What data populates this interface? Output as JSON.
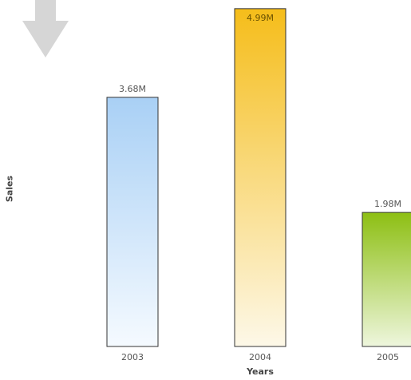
{
  "chart_data": {
    "type": "bar",
    "title": "",
    "xlabel": "Years",
    "ylabel": "Sales",
    "categories": [
      "2003",
      "2004",
      "2005"
    ],
    "values": [
      3.68,
      4.99,
      1.98
    ],
    "value_labels": [
      "3.68M",
      "4.99M",
      "1.98M"
    ],
    "unit": "M",
    "ylim": [
      0,
      5
    ],
    "grid": false,
    "legend": "none",
    "colors": [
      {
        "top": "#a9d0f5",
        "bottom": "#f5faff"
      },
      {
        "top": "#f5bd1a",
        "bottom": "#fdf8e8"
      },
      {
        "top": "#8dbf13",
        "bottom": "#eef6dd"
      }
    ],
    "bar_stroke": "#333333",
    "decor_icon": "arrow-down-icon"
  }
}
